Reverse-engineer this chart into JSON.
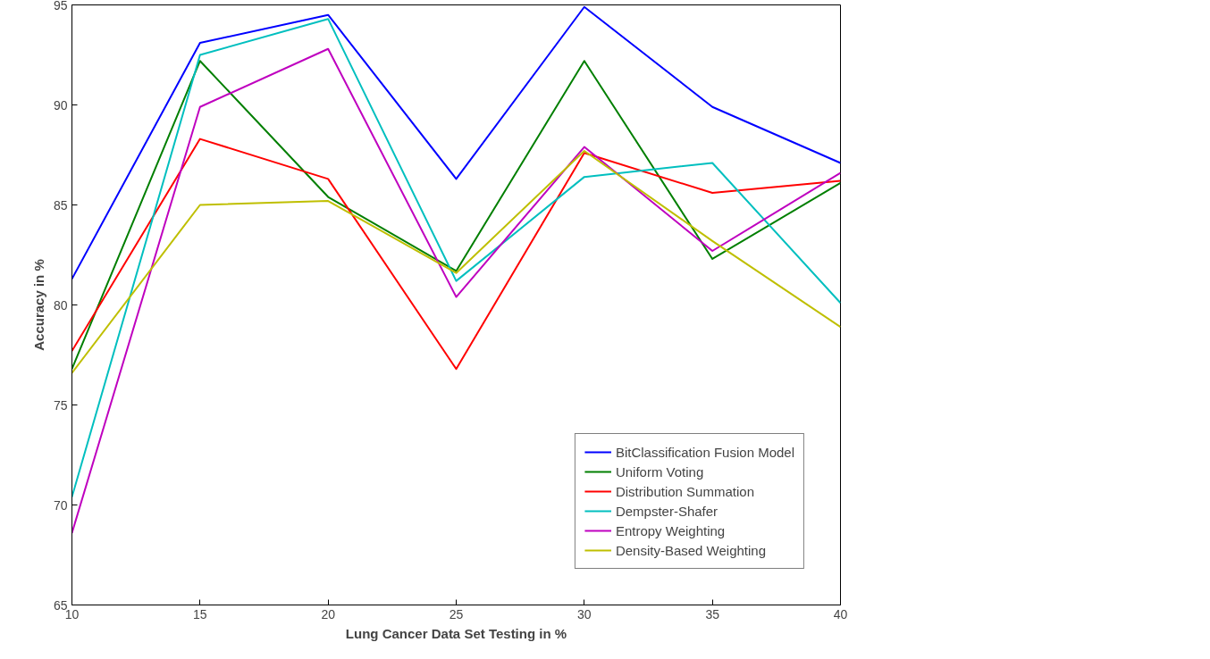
{
  "chart_data": {
    "type": "line",
    "xlabel": "Lung Cancer Data Set Testing in %",
    "ylabel": "Accuracy in %",
    "x": [
      10,
      15,
      20,
      25,
      30,
      35,
      40
    ],
    "series": [
      {
        "name": "BitClassification Fusion Model",
        "color": "#0000ff",
        "values": [
          81.3,
          93.1,
          94.5,
          86.3,
          94.9,
          89.9,
          87.1
        ]
      },
      {
        "name": "Uniform Voting",
        "color": "#007f00",
        "values": [
          76.8,
          92.2,
          85.4,
          81.7,
          92.2,
          82.3,
          86.1
        ]
      },
      {
        "name": "Distribution Summation",
        "color": "#ff0000",
        "values": [
          77.7,
          88.3,
          86.3,
          76.8,
          87.6,
          85.6,
          86.2
        ]
      },
      {
        "name": "Dempster-Shafer",
        "color": "#00bfbf",
        "values": [
          70.4,
          92.5,
          94.3,
          81.2,
          86.4,
          87.1,
          80.1
        ]
      },
      {
        "name": "Entropy Weighting",
        "color": "#bf00bf",
        "values": [
          68.6,
          89.9,
          92.8,
          80.4,
          87.9,
          82.7,
          86.6
        ]
      },
      {
        "name": "Density-Based Weighting",
        "color": "#bfbf00",
        "values": [
          76.6,
          85.0,
          85.2,
          81.6,
          87.7,
          83.2,
          78.9
        ]
      }
    ],
    "xlim": [
      10,
      40
    ],
    "ylim": [
      65,
      95
    ],
    "xticks": [
      10,
      15,
      20,
      25,
      30,
      35,
      40
    ],
    "yticks": [
      65,
      70,
      75,
      80,
      85,
      90,
      95
    ],
    "grid": false,
    "legend": "bottom right",
    "marker": "none",
    "line_style": "solid"
  }
}
